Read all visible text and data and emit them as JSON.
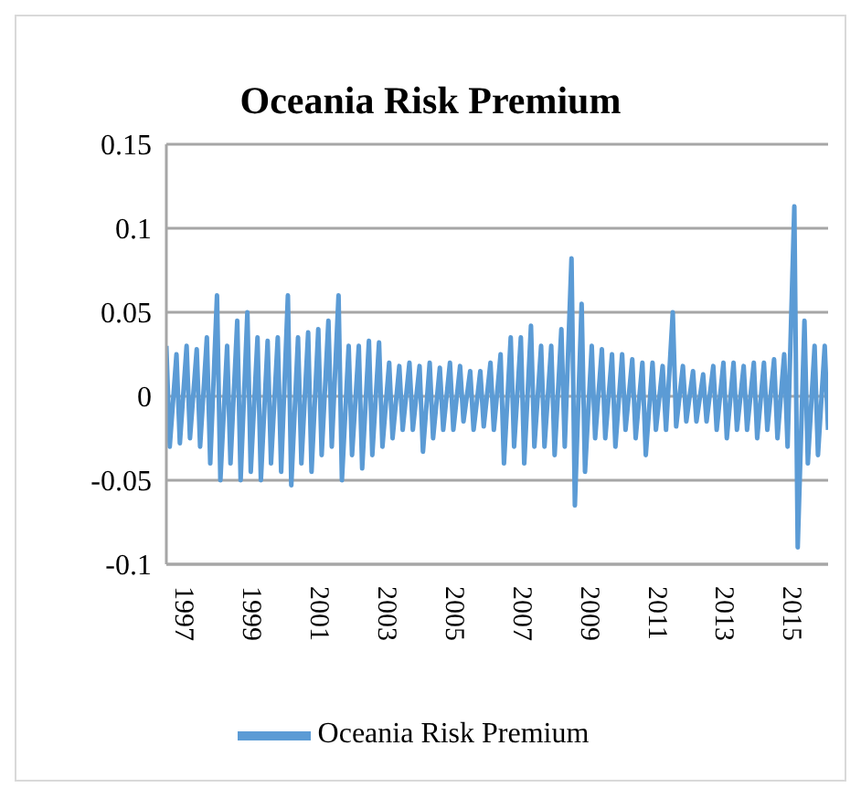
{
  "chart_data": {
    "type": "line",
    "title": "Oceania Risk Premium",
    "x": [
      1996.5,
      1996.6,
      1996.8,
      1996.9,
      1997.1,
      1997.2,
      1997.4,
      1997.5,
      1997.7,
      1997.8,
      1998.0,
      1998.1,
      1998.3,
      1998.4,
      1998.6,
      1998.7,
      1998.9,
      1999.0,
      1999.2,
      1999.3,
      1999.5,
      1999.6,
      1999.8,
      1999.9,
      2000.1,
      2000.2,
      2000.4,
      2000.5,
      2000.7,
      2000.8,
      2001.0,
      2001.1,
      2001.3,
      2001.4,
      2001.6,
      2001.7,
      2001.9,
      2002.0,
      2002.2,
      2002.3,
      2002.5,
      2002.6,
      2002.8,
      2002.9,
      2003.1,
      2003.2,
      2003.4,
      2003.5,
      2003.7,
      2003.8,
      2004.0,
      2004.1,
      2004.3,
      2004.4,
      2004.6,
      2004.7,
      2004.9,
      2005.0,
      2005.2,
      2005.3,
      2005.5,
      2005.6,
      2005.8,
      2005.9,
      2006.1,
      2006.2,
      2006.4,
      2006.5,
      2006.7,
      2006.8,
      2007.0,
      2007.1,
      2007.3,
      2007.4,
      2007.6,
      2007.7,
      2007.9,
      2008.0,
      2008.2,
      2008.3,
      2008.5,
      2008.6,
      2008.8,
      2008.9,
      2009.1,
      2009.2,
      2009.4,
      2009.5,
      2009.7,
      2009.8,
      2010.0,
      2010.1,
      2010.3,
      2010.4,
      2010.6,
      2010.7,
      2010.9,
      2011.0,
      2011.2,
      2011.3,
      2011.5,
      2011.6,
      2011.8,
      2011.9,
      2012.1,
      2012.2,
      2012.4,
      2012.5,
      2012.7,
      2012.8,
      2013.0,
      2013.1,
      2013.3,
      2013.4,
      2013.6,
      2013.7,
      2013.9,
      2014.0,
      2014.2,
      2014.3,
      2014.5,
      2014.6,
      2014.8,
      2014.9,
      2015.1,
      2015.2,
      2015.4,
      2015.5,
      2015.7,
      2015.8,
      2016.0,
      2016.1
    ],
    "series": [
      {
        "name": "Oceania Risk Premium",
        "color": "#5b9bd5",
        "values": [
          0.03,
          -0.03,
          0.025,
          -0.028,
          0.03,
          -0.025,
          0.028,
          -0.03,
          0.035,
          -0.04,
          0.06,
          -0.05,
          0.03,
          -0.04,
          0.045,
          -0.05,
          0.05,
          -0.045,
          0.035,
          -0.05,
          0.033,
          -0.04,
          0.035,
          -0.045,
          0.06,
          -0.053,
          0.035,
          -0.04,
          0.038,
          -0.045,
          0.04,
          -0.035,
          0.045,
          -0.03,
          0.06,
          -0.05,
          0.03,
          -0.035,
          0.03,
          -0.043,
          0.033,
          -0.035,
          0.032,
          -0.03,
          0.02,
          -0.025,
          0.018,
          -0.02,
          0.02,
          -0.02,
          0.018,
          -0.033,
          0.02,
          -0.025,
          0.017,
          -0.02,
          0.02,
          -0.02,
          0.018,
          -0.015,
          0.015,
          -0.02,
          0.015,
          -0.018,
          0.02,
          -0.02,
          0.025,
          -0.04,
          0.035,
          -0.03,
          0.035,
          -0.04,
          0.042,
          -0.03,
          0.03,
          -0.03,
          0.03,
          -0.035,
          0.04,
          -0.03,
          0.082,
          -0.065,
          0.055,
          -0.045,
          0.03,
          -0.025,
          0.028,
          -0.025,
          0.025,
          -0.03,
          0.025,
          -0.02,
          0.022,
          -0.025,
          0.02,
          -0.035,
          0.02,
          -0.02,
          0.018,
          -0.02,
          0.05,
          -0.018,
          0.018,
          -0.015,
          0.015,
          -0.015,
          0.013,
          -0.015,
          0.018,
          -0.02,
          0.02,
          -0.025,
          0.02,
          -0.02,
          0.018,
          -0.02,
          0.02,
          -0.025,
          0.02,
          -0.02,
          0.022,
          -0.025,
          0.025,
          -0.03,
          0.113,
          -0.09,
          0.045,
          -0.04,
          0.03,
          -0.035,
          0.03,
          -0.02
        ]
      }
    ],
    "xlim": [
      1996.5,
      2016.1
    ],
    "xticks": [
      1997,
      1999,
      2001,
      2003,
      2005,
      2007,
      2009,
      2011,
      2013,
      2015
    ],
    "ylim": [
      -0.1,
      0.15
    ],
    "yticks": [
      -0.1,
      -0.05,
      0,
      0.05,
      0.1,
      0.15
    ],
    "grid": "y",
    "legend": "bottom",
    "marker": "none",
    "line_style": "solid"
  }
}
